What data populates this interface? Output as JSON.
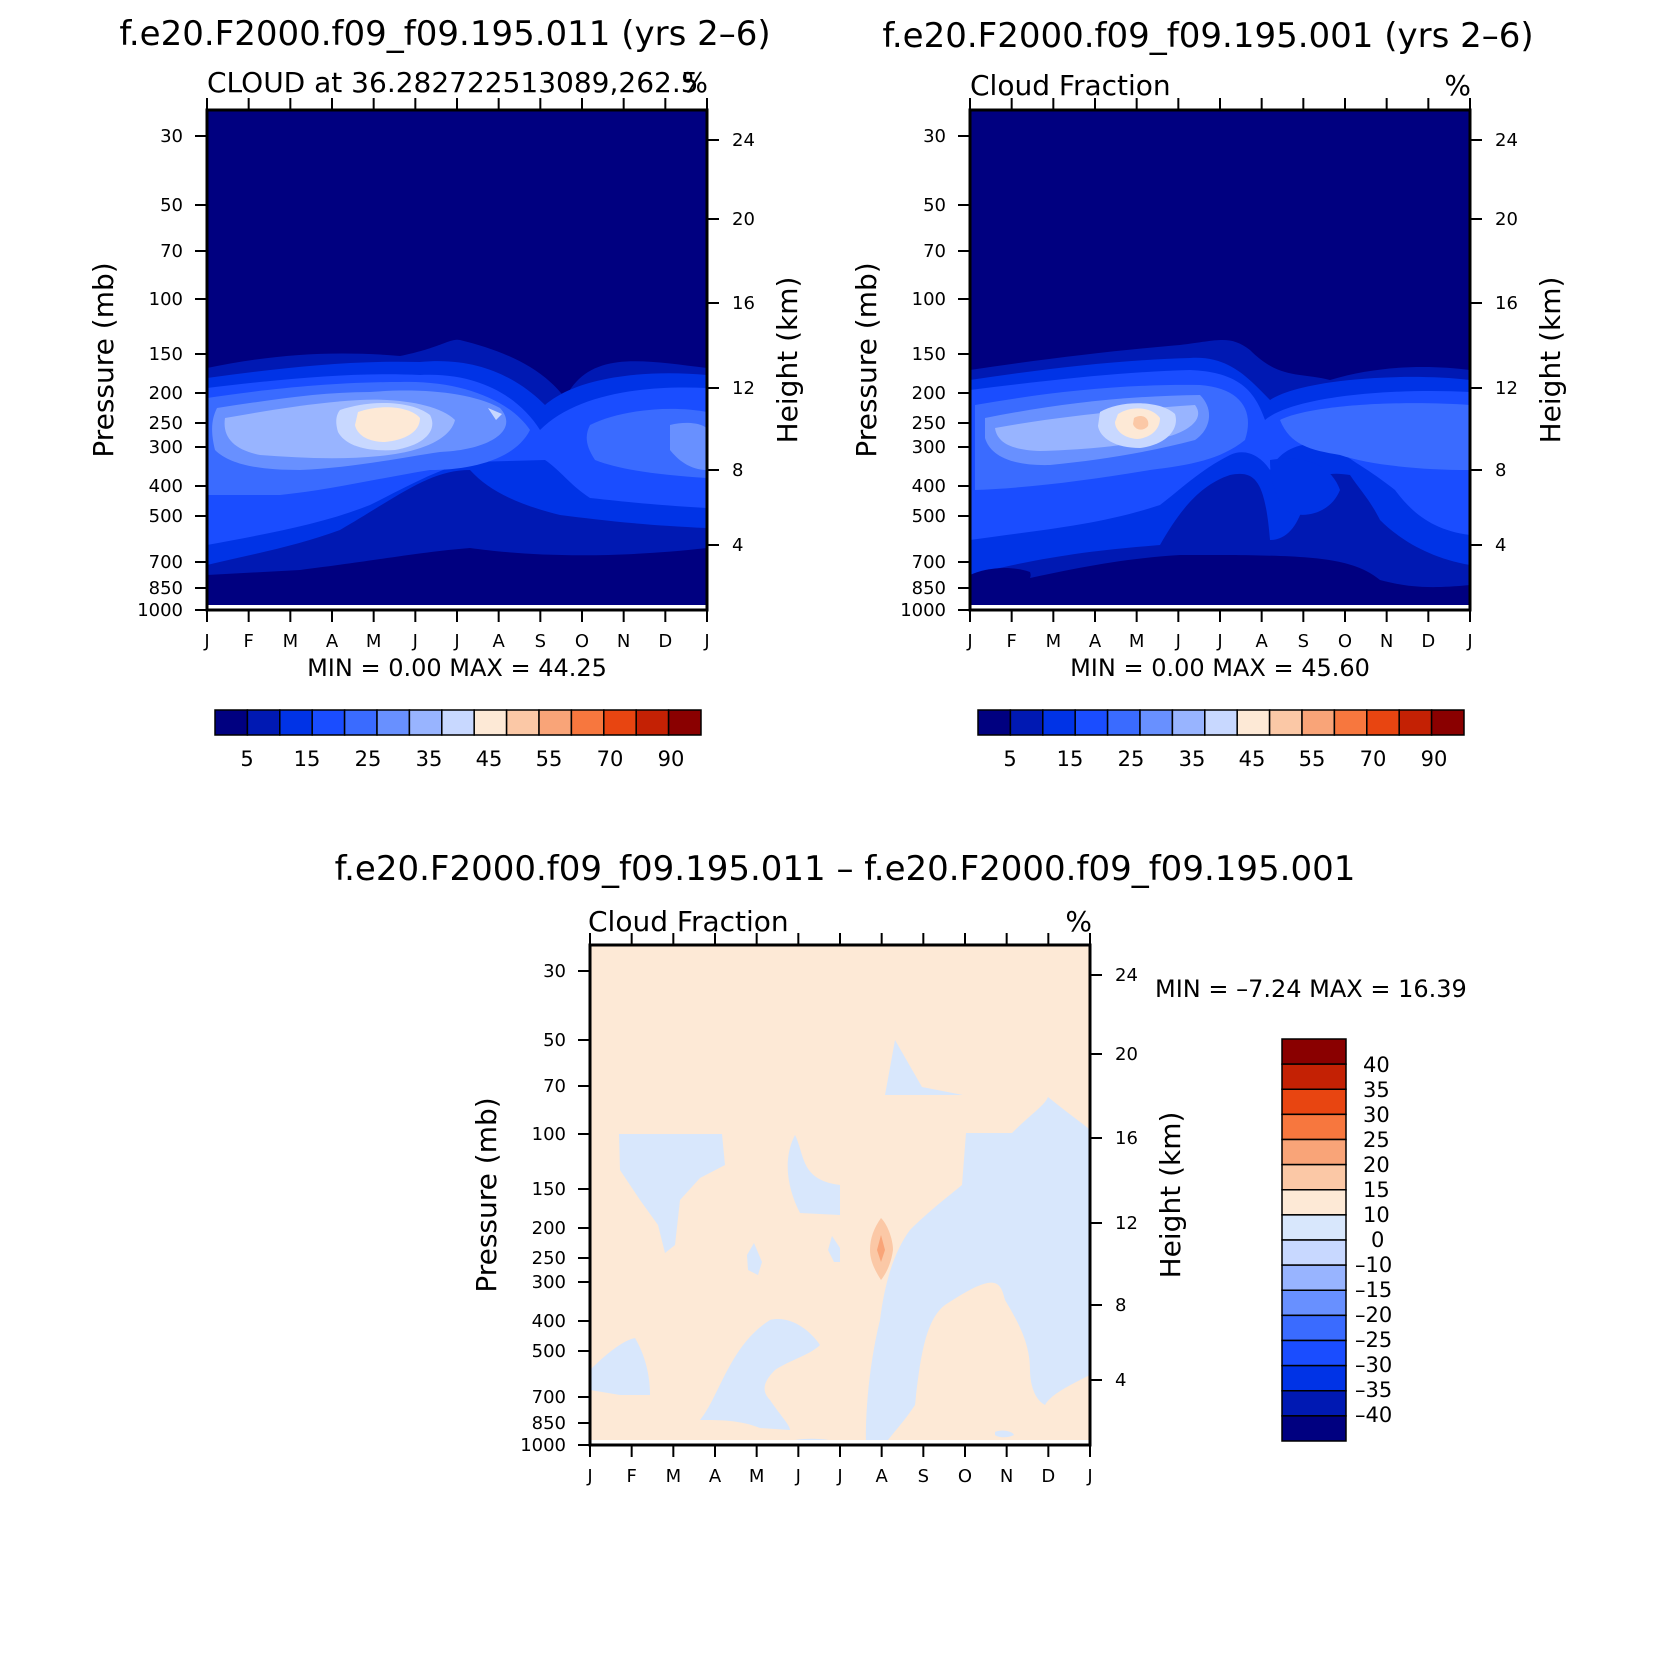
{
  "colors": {
    "seq_levels": [
      "#000080",
      "#0019b3",
      "#0033e6",
      "#1a4dff",
      "#3a6bff",
      "#6890ff",
      "#98b4ff",
      "#c8d8ff",
      "#fde9d6",
      "#fbc8a6",
      "#f9a478",
      "#f7773e",
      "#e84511",
      "#c42104",
      "#8a0000"
    ],
    "diff_levels": [
      "#000080",
      "#0019b3",
      "#0033e6",
      "#1a4dff",
      "#3a6bff",
      "#6890ff",
      "#98b4ff",
      "#c8d8ff",
      "#d8e7fc",
      "#fde9d6",
      "#fbc8a6",
      "#f9a478",
      "#f7773e",
      "#e84511",
      "#c42104",
      "#8a0000"
    ]
  },
  "panels": {
    "top_left": {
      "title": "f.e20.F2000.f09_f09.195.011 (yrs 2–6)",
      "left_string": "CLOUD at 36.282722513089,262.5",
      "right_string": "%",
      "min_max": "MIN =     0.00  MAX =    44.25"
    },
    "top_right": {
      "title": "f.e20.F2000.f09_f09.195.001 (yrs 2–6)",
      "left_string": "Cloud Fraction",
      "right_string": "%",
      "min_max": "MIN =     0.00  MAX =    45.60"
    },
    "bottom": {
      "title": "f.e20.F2000.f09_f09.195.011 – f.e20.F2000.f09_f09.195.001",
      "left_string": "Cloud Fraction",
      "right_string": "%",
      "min_max": "MIN =   –7.24  MAX =    16.39"
    }
  },
  "axes": {
    "ylabel_left": "Pressure (mb)",
    "ylabel_right": "Height (km)",
    "pressure_ticks": [
      "30",
      "50",
      "70",
      "100",
      "150",
      "200",
      "250",
      "300",
      "400",
      "500",
      "700",
      "850",
      "1000"
    ],
    "height_ticks": [
      "24",
      "20",
      "16",
      "12",
      "8",
      "4"
    ],
    "month_ticks": [
      "J",
      "F",
      "M",
      "A",
      "M",
      "J",
      "J",
      "A",
      "S",
      "O",
      "N",
      "D",
      "J"
    ]
  },
  "colorbar_seq_labels": [
    "5",
    "15",
    "25",
    "35",
    "45",
    "55",
    "70",
    "90"
  ],
  "colorbar_diff_labels": [
    "40",
    "35",
    "30",
    "25",
    "20",
    "15",
    "10",
    "0",
    "–10",
    "–15",
    "–20",
    "–25",
    "–30",
    "–35",
    "–40"
  ],
  "chart_data": [
    {
      "type": "heatmap",
      "title": "f.e20.F2000.f09_f09.195.011 (yrs 2–6)",
      "subtitle": "CLOUD at 36.282722513089,262.5",
      "units": "%",
      "x": [
        "J",
        "F",
        "M",
        "A",
        "M",
        "J",
        "J",
        "A",
        "S",
        "O",
        "N",
        "D",
        "J"
      ],
      "y_pressure_mb": [
        30,
        50,
        70,
        100,
        150,
        200,
        250,
        300,
        400,
        500,
        700,
        850,
        1000
      ],
      "xlabel": "",
      "ylabel": "Pressure (mb)",
      "ylabel_right": "Height (km)",
      "contour_levels": [
        5,
        10,
        15,
        20,
        25,
        30,
        35,
        40,
        45,
        50,
        55,
        60,
        70,
        80,
        90
      ],
      "min": 0.0,
      "max": 44.25,
      "features": [
        {
          "month": "M",
          "pressure_mb": 270,
          "approx_value": 42
        }
      ]
    },
    {
      "type": "heatmap",
      "title": "f.e20.F2000.f09_f09.195.001 (yrs 2–6)",
      "subtitle": "Cloud Fraction",
      "units": "%",
      "x": [
        "J",
        "F",
        "M",
        "A",
        "M",
        "J",
        "J",
        "A",
        "S",
        "O",
        "N",
        "D",
        "J"
      ],
      "y_pressure_mb": [
        30,
        50,
        70,
        100,
        150,
        200,
        250,
        300,
        400,
        500,
        700,
        850,
        1000
      ],
      "xlabel": "",
      "ylabel": "Pressure (mb)",
      "ylabel_right": "Height (km)",
      "contour_levels": [
        5,
        10,
        15,
        20,
        25,
        30,
        35,
        40,
        45,
        50,
        55,
        60,
        70,
        80,
        90
      ],
      "min": 0.0,
      "max": 45.6,
      "features": [
        {
          "month": "M",
          "pressure_mb": 270,
          "approx_value": 45
        }
      ]
    },
    {
      "type": "heatmap",
      "title": "f.e20.F2000.f09_f09.195.011 – f.e20.F2000.f09_f09.195.001",
      "subtitle": "Cloud Fraction",
      "units": "%",
      "x": [
        "J",
        "F",
        "M",
        "A",
        "M",
        "J",
        "J",
        "A",
        "S",
        "O",
        "N",
        "D",
        "J"
      ],
      "y_pressure_mb": [
        30,
        50,
        70,
        100,
        150,
        200,
        250,
        300,
        400,
        500,
        700,
        850,
        1000
      ],
      "xlabel": "",
      "ylabel": "Pressure (mb)",
      "ylabel_right": "Height (km)",
      "contour_levels": [
        -40,
        -35,
        -30,
        -25,
        -20,
        -15,
        -10,
        0,
        10,
        15,
        20,
        25,
        30,
        35,
        40
      ],
      "min": -7.24,
      "max": 16.39,
      "features": [
        {
          "month": "A",
          "pressure_mb": 220,
          "approx_value": 12
        }
      ]
    }
  ]
}
